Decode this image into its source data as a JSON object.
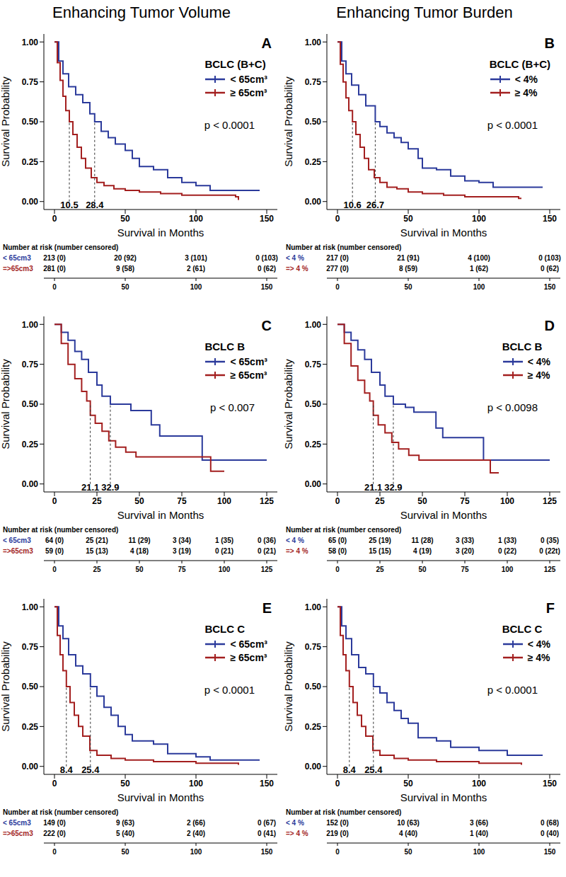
{
  "headers": [
    "Enhancing Tumor Volume",
    "Enhancing Tumor Burden"
  ],
  "chart_data": [
    {
      "type": "line",
      "line_style": "step",
      "title": "A",
      "legend_title": "BCLC (B+C)",
      "legend": "right",
      "x_label": "Survival in Months",
      "y_label": "Survival Probability",
      "xlim": [
        -7.5,
        157.5
      ],
      "xticks": [
        0,
        50,
        100,
        150
      ],
      "ylim": [
        -0.05,
        1.05
      ],
      "yticks": [
        {
          "value": 0,
          "label": "0.00"
        },
        {
          "value": 0.25,
          "label": "0.25"
        },
        {
          "value": 0.5,
          "label": "0.50"
        },
        {
          "value": 0.75,
          "label": "0.75"
        },
        {
          "value": 1,
          "label": "1.00"
        }
      ],
      "series": [
        {
          "name": "< 65cm³",
          "color": "#2b3a9b",
          "x": [
            0,
            3,
            6,
            10,
            15,
            20,
            25,
            28.4,
            33,
            38,
            43,
            50,
            55,
            60,
            70,
            80,
            90,
            100,
            110,
            145
          ],
          "values": [
            1,
            0.88,
            0.8,
            0.72,
            0.67,
            0.62,
            0.55,
            0.5,
            0.44,
            0.4,
            0.36,
            0.32,
            0.27,
            0.22,
            0.2,
            0.15,
            0.12,
            0.1,
            0.07,
            0.07
          ]
        },
        {
          "name": "≥ 65cm³",
          "color": "#a31f1f",
          "x": [
            0,
            2,
            4,
            6,
            8,
            10.5,
            13,
            16,
            19,
            22,
            26,
            30,
            35,
            42,
            50,
            60,
            75,
            90,
            105,
            128,
            130
          ],
          "values": [
            1,
            0.87,
            0.76,
            0.66,
            0.57,
            0.5,
            0.42,
            0.34,
            0.27,
            0.21,
            0.15,
            0.12,
            0.1,
            0.08,
            0.07,
            0.06,
            0.05,
            0.04,
            0.04,
            0.03,
            0.01
          ]
        }
      ],
      "medians": {
        "x": [
          10.5,
          28.4
        ],
        "y": 0.5
      },
      "annotations": [
        {
          "text": "p < 0.0001"
        }
      ],
      "risk_table": {
        "title": "Number at risk (number censored)",
        "times": [
          0,
          50,
          100,
          150
        ],
        "rows": [
          {
            "label": "< 65cm3",
            "color": "#2b3a9b",
            "cells": [
              "213 (0)",
              "20 (92)",
              "3 (101)",
              "0 (103)"
            ]
          },
          {
            "label": "=>65cm3",
            "color": "#a31f1f",
            "cells": [
              "281 (0)",
              "9 (58)",
              "2 (61)",
              "0 (62)"
            ]
          }
        ]
      }
    },
    {
      "type": "line",
      "line_style": "step",
      "title": "B",
      "legend_title": "BCLC (B+C)",
      "legend": "right",
      "x_label": "Survival in Months",
      "y_label": "Survival Probability",
      "xlim": [
        -7.5,
        157.5
      ],
      "xticks": [
        0,
        50,
        100,
        150
      ],
      "ylim": [
        -0.05,
        1.05
      ],
      "yticks": [
        {
          "value": 0,
          "label": "0.00"
        },
        {
          "value": 0.25,
          "label": "0.25"
        },
        {
          "value": 0.5,
          "label": "0.50"
        },
        {
          "value": 0.75,
          "label": "0.75"
        },
        {
          "value": 1,
          "label": "1.00"
        }
      ],
      "series": [
        {
          "name": "< 4%",
          "color": "#2b3a9b",
          "x": [
            0,
            3,
            6,
            10,
            15,
            20,
            26.7,
            30,
            35,
            40,
            45,
            50,
            57,
            60,
            70,
            80,
            90,
            100,
            110,
            145
          ],
          "values": [
            1,
            0.88,
            0.8,
            0.73,
            0.67,
            0.6,
            0.5,
            0.47,
            0.43,
            0.4,
            0.37,
            0.33,
            0.27,
            0.21,
            0.2,
            0.16,
            0.13,
            0.12,
            0.09,
            0.09
          ]
        },
        {
          "name": "≥ 4%",
          "color": "#a31f1f",
          "x": [
            0,
            2,
            4,
            6,
            8,
            10.6,
            13,
            16,
            19,
            22,
            26,
            30,
            35,
            42,
            50,
            60,
            75,
            90,
            105,
            128,
            130
          ],
          "values": [
            1,
            0.86,
            0.75,
            0.65,
            0.57,
            0.5,
            0.42,
            0.34,
            0.27,
            0.2,
            0.15,
            0.12,
            0.09,
            0.08,
            0.06,
            0.05,
            0.04,
            0.03,
            0.03,
            0.02,
            0.02
          ]
        }
      ],
      "medians": {
        "x": [
          10.6,
          26.7
        ],
        "y": 0.5
      },
      "annotations": [
        {
          "text": "p < 0.0001"
        }
      ],
      "risk_table": {
        "title": "Number at risk (number censored)",
        "times": [
          0,
          50,
          100,
          150
        ],
        "rows": [
          {
            "label": "< 4 %",
            "color": "#2b3a9b",
            "cells": [
              "217 (0)",
              "21 (91)",
              "4 (100)",
              "0 (103)"
            ]
          },
          {
            "label": "=> 4 %",
            "color": "#a31f1f",
            "cells": [
              "277 (0)",
              "8 (59)",
              "1 (62)",
              "0 (62)"
            ]
          }
        ]
      }
    },
    {
      "type": "line",
      "line_style": "step",
      "title": "C",
      "legend_title": "BCLC B",
      "legend": "right",
      "x_label": "Survival in Months",
      "y_label": "Survival Probability",
      "xlim": [
        -6.25,
        131.25
      ],
      "xticks": [
        0,
        25,
        50,
        75,
        100,
        125
      ],
      "ylim": [
        -0.05,
        1.05
      ],
      "yticks": [
        {
          "value": 0,
          "label": "0.00"
        },
        {
          "value": 0.25,
          "label": "0.25"
        },
        {
          "value": 0.5,
          "label": "0.50"
        },
        {
          "value": 0.75,
          "label": "0.75"
        },
        {
          "value": 1,
          "label": "1.00"
        }
      ],
      "series": [
        {
          "name": "< 65cm³",
          "color": "#2b3a9b",
          "x": [
            0,
            4,
            8,
            12,
            16,
            20,
            25,
            28,
            32.9,
            40,
            45,
            55,
            57,
            62,
            70,
            86,
            87,
            125
          ],
          "values": [
            1,
            0.95,
            0.9,
            0.83,
            0.78,
            0.7,
            0.62,
            0.55,
            0.5,
            0.5,
            0.46,
            0.46,
            0.37,
            0.3,
            0.3,
            0.3,
            0.15,
            0.15
          ]
        },
        {
          "name": "≥ 65cm³",
          "color": "#a31f1f",
          "x": [
            0,
            4,
            8,
            12,
            16,
            19,
            21.1,
            24,
            28,
            32,
            36,
            42,
            48,
            90,
            92,
            100
          ],
          "values": [
            1,
            0.88,
            0.75,
            0.66,
            0.58,
            0.52,
            0.43,
            0.38,
            0.33,
            0.27,
            0.23,
            0.2,
            0.17,
            0.17,
            0.08,
            0.08
          ]
        }
      ],
      "medians": {
        "x": [
          21.1,
          32.9
        ],
        "y": 0.5
      },
      "annotations": [
        {
          "text": "p < 0.007"
        }
      ],
      "risk_table": {
        "title": "Number at risk (number censored)",
        "times": [
          0,
          25,
          50,
          75,
          100,
          125
        ],
        "rows": [
          {
            "label": "< 65cm3",
            "color": "#2b3a9b",
            "cells": [
              "64 (0)",
              "25 (21)",
              "11 (29)",
              "3 (34)",
              "1 (35)",
              "0 (36)"
            ]
          },
          {
            "label": "=>65cm3",
            "color": "#a31f1f",
            "cells": [
              "59 (0)",
              "15 (13)",
              "4 (18)",
              "3 (19)",
              "0 (21)",
              "0 (21)"
            ]
          }
        ]
      }
    },
    {
      "type": "line",
      "line_style": "step",
      "title": "D",
      "legend_title": "BCLC B",
      "legend": "right",
      "x_label": "Survival in Months",
      "y_label": "Survival Probability",
      "xlim": [
        -6.25,
        131.25
      ],
      "xticks": [
        0,
        25,
        50,
        75,
        100,
        125
      ],
      "ylim": [
        -0.05,
        1.05
      ],
      "yticks": [
        {
          "value": 0,
          "label": "0.00"
        },
        {
          "value": 0.25,
          "label": "0.25"
        },
        {
          "value": 0.5,
          "label": "0.50"
        },
        {
          "value": 0.75,
          "label": "0.75"
        },
        {
          "value": 1,
          "label": "1.00"
        }
      ],
      "series": [
        {
          "name": "< 4%",
          "color": "#2b3a9b",
          "x": [
            0,
            4,
            8,
            12,
            16,
            20,
            25,
            28,
            32.9,
            40,
            45,
            55,
            58,
            62,
            85,
            86,
            125
          ],
          "values": [
            1,
            0.95,
            0.9,
            0.84,
            0.78,
            0.7,
            0.62,
            0.55,
            0.5,
            0.48,
            0.45,
            0.45,
            0.35,
            0.29,
            0.29,
            0.15,
            0.15
          ]
        },
        {
          "name": "≥ 4%",
          "color": "#a31f1f",
          "x": [
            0,
            4,
            8,
            12,
            16,
            19,
            21.1,
            24,
            28,
            32,
            36,
            42,
            48,
            88,
            90,
            95
          ],
          "values": [
            1,
            0.88,
            0.74,
            0.65,
            0.57,
            0.52,
            0.43,
            0.37,
            0.32,
            0.26,
            0.22,
            0.18,
            0.15,
            0.15,
            0.07,
            0.07
          ]
        }
      ],
      "medians": {
        "x": [
          21.1,
          32.9
        ],
        "y": 0.5
      },
      "annotations": [
        {
          "text": "p < 0.0098"
        }
      ],
      "risk_table": {
        "title": "Number at risk (number censored)",
        "times": [
          0,
          25,
          50,
          75,
          100,
          125
        ],
        "rows": [
          {
            "label": "< 4 %",
            "color": "#2b3a9b",
            "cells": [
              "65 (0)",
              "25 (19)",
              "11 (28)",
              "3 (33)",
              "1 (33)",
              "0 (35)"
            ]
          },
          {
            "label": "=> 4 %",
            "color": "#a31f1f",
            "cells": [
              "58 (0)",
              "15 (15)",
              "4 (19)",
              "3 (20)",
              "0 (22)",
              "0 (22t)"
            ]
          }
        ]
      }
    },
    {
      "type": "line",
      "line_style": "step",
      "title": "E",
      "legend_title": "BCLC C",
      "legend": "right",
      "x_label": "Survival in Months",
      "y_label": "Survival Probability",
      "xlim": [
        -7.5,
        157.5
      ],
      "xticks": [
        0,
        50,
        100,
        150
      ],
      "ylim": [
        -0.05,
        1.05
      ],
      "yticks": [
        {
          "value": 0,
          "label": "0.00"
        },
        {
          "value": 0.25,
          "label": "0.25"
        },
        {
          "value": 0.5,
          "label": "0.50"
        },
        {
          "value": 0.75,
          "label": "0.75"
        },
        {
          "value": 1,
          "label": "1.00"
        }
      ],
      "series": [
        {
          "name": "< 65cm³",
          "color": "#2b3a9b",
          "x": [
            0,
            3,
            6,
            10,
            15,
            20,
            25.4,
            30,
            35,
            40,
            45,
            50,
            55,
            70,
            80,
            100,
            110,
            145
          ],
          "values": [
            1,
            0.88,
            0.8,
            0.7,
            0.63,
            0.58,
            0.5,
            0.44,
            0.37,
            0.32,
            0.25,
            0.2,
            0.16,
            0.14,
            0.08,
            0.06,
            0.04,
            0.04
          ]
        },
        {
          "name": "≥ 65cm³",
          "color": "#a31f1f",
          "x": [
            0,
            2,
            4,
            6,
            8.4,
            11,
            14,
            17,
            20,
            25,
            30,
            40,
            50,
            70,
            100,
            130
          ],
          "values": [
            1,
            0.82,
            0.7,
            0.6,
            0.5,
            0.4,
            0.32,
            0.25,
            0.19,
            0.1,
            0.07,
            0.05,
            0.04,
            0.03,
            0.02,
            0.01
          ]
        }
      ],
      "medians": {
        "x": [
          8.4,
          25.4
        ],
        "y": 0.5
      },
      "annotations": [
        {
          "text": "p < 0.0001"
        }
      ],
      "risk_table": {
        "title": "Number at risk (number censored)",
        "times": [
          0,
          50,
          100,
          150
        ],
        "rows": [
          {
            "label": "< 65cm3",
            "color": "#2b3a9b",
            "cells": [
              "149 (0)",
              "9 (63)",
              "2 (66)",
              "0 (67)"
            ]
          },
          {
            "label": "=>65cm3",
            "color": "#a31f1f",
            "cells": [
              "222 (0)",
              "5 (40)",
              "2 (40)",
              "0 (41)"
            ]
          }
        ]
      }
    },
    {
      "type": "line",
      "line_style": "step",
      "title": "F",
      "legend_title": "BCLC C",
      "legend": "right",
      "x_label": "Survival in Months",
      "y_label": "Survival Probability",
      "xlim": [
        -7.5,
        157.5
      ],
      "xticks": [
        0,
        50,
        100,
        150
      ],
      "ylim": [
        -0.05,
        1.05
      ],
      "yticks": [
        {
          "value": 0,
          "label": "0.00"
        },
        {
          "value": 0.25,
          "label": "0.25"
        },
        {
          "value": 0.5,
          "label": "0.50"
        },
        {
          "value": 0.75,
          "label": "0.75"
        },
        {
          "value": 1,
          "label": "1.00"
        }
      ],
      "series": [
        {
          "name": "< 4%",
          "color": "#2b3a9b",
          "x": [
            0,
            3,
            6,
            10,
            15,
            20,
            25.4,
            30,
            35,
            40,
            45,
            50,
            57,
            70,
            80,
            100,
            120,
            145
          ],
          "values": [
            1,
            0.88,
            0.8,
            0.7,
            0.62,
            0.58,
            0.5,
            0.46,
            0.4,
            0.35,
            0.3,
            0.27,
            0.18,
            0.16,
            0.12,
            0.1,
            0.07,
            0.07
          ]
        },
        {
          "name": "≥ 4%",
          "color": "#a31f1f",
          "x": [
            0,
            2,
            4,
            6,
            8.4,
            11,
            14,
            17,
            20,
            25,
            30,
            40,
            50,
            70,
            100,
            130
          ],
          "values": [
            1,
            0.82,
            0.7,
            0.6,
            0.5,
            0.4,
            0.32,
            0.25,
            0.19,
            0.1,
            0.07,
            0.05,
            0.04,
            0.03,
            0.02,
            0.01
          ]
        }
      ],
      "medians": {
        "x": [
          8.4,
          25.4
        ],
        "y": 0.5
      },
      "annotations": [
        {
          "text": "p < 0.0001"
        }
      ],
      "risk_table": {
        "title": "Number at risk (number censored)",
        "times": [
          0,
          50,
          100,
          150
        ],
        "rows": [
          {
            "label": "< 4 %",
            "color": "#2b3a9b",
            "cells": [
              "152 (0)",
              "10 (63)",
              "3 (66)",
              "0 (68)"
            ]
          },
          {
            "label": "=> 4 %",
            "color": "#a31f1f",
            "cells": [
              "219 (0)",
              "4 (40)",
              "1 (40)",
              "0 (40)"
            ]
          }
        ]
      }
    }
  ]
}
